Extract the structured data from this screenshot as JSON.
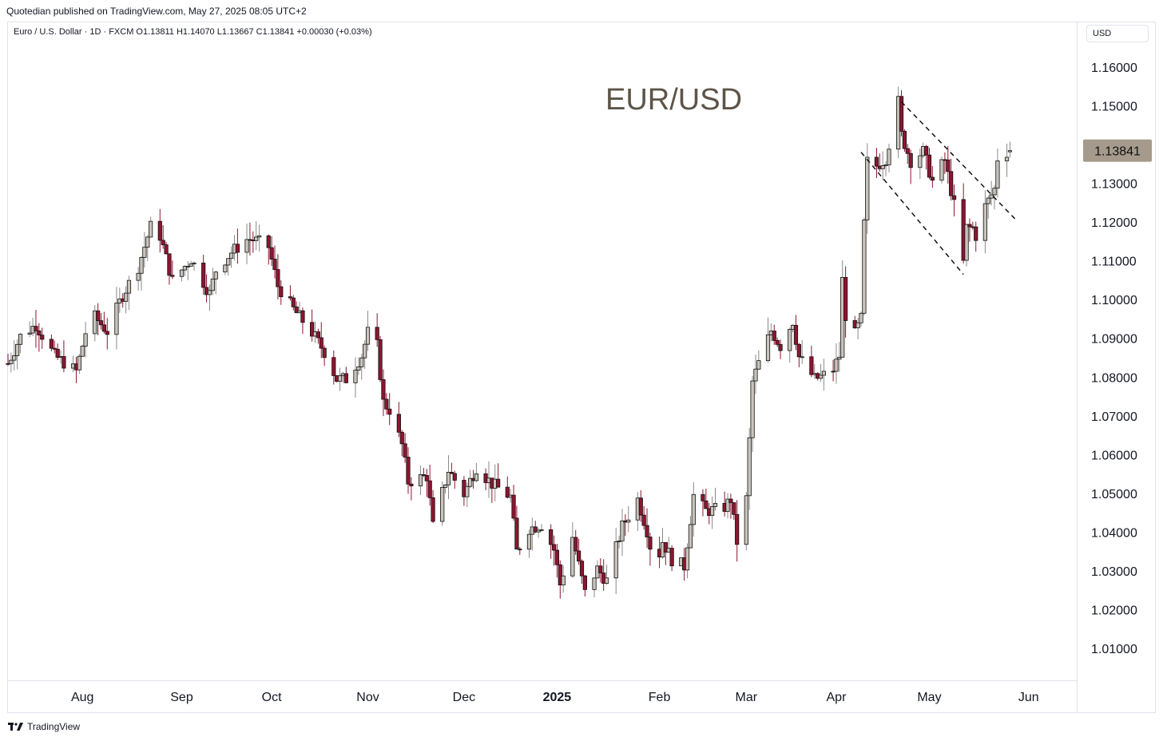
{
  "publisher_line": "Quotedian published on TradingView.com, May 27, 2025 08:05 UTC+2",
  "legend_line": "Euro / U.S. Dollar · 1D · FXCM  O1.13811  H1.14070  L1.13667  C1.13841  +0.00030 (+0.03%)",
  "currency_button": "USD",
  "footer_brand": "TradingView",
  "colors": {
    "up_body": "#c9c4bc",
    "down_body": "#8e1530",
    "wick": "#555555",
    "last_price_bg": "#a59a8c",
    "title": "#5d5448"
  },
  "chart_data": {
    "type": "candlestick",
    "title": "EUR/USD",
    "symbol": "Euro / U.S. Dollar",
    "interval": "1D",
    "source": "FXCM",
    "ohlc_last": {
      "open": 1.13811,
      "high": 1.1407,
      "low": 1.13667,
      "close": 1.13841,
      "change": "+0.00030 (+0.03%)"
    },
    "last_price_label": "1.13841",
    "y_axis": {
      "position": "right",
      "currency": "USD",
      "ylim": [
        1.002,
        1.1715
      ],
      "ticks": [
        "1.16000",
        "1.15000",
        "1.14000",
        "1.13000",
        "1.12000",
        "1.11000",
        "1.10000",
        "1.09000",
        "1.08000",
        "1.07000",
        "1.06000",
        "1.05000",
        "1.04000",
        "1.03000",
        "1.02000",
        "1.01000"
      ]
    },
    "x_axis": {
      "ticks": [
        {
          "label": "Aug",
          "date": "2024-08-01",
          "bold": false
        },
        {
          "label": "Sep",
          "date": "2024-09-02",
          "bold": false
        },
        {
          "label": "Oct",
          "date": "2024-10-01",
          "bold": false
        },
        {
          "label": "Nov",
          "date": "2024-11-01",
          "bold": false
        },
        {
          "label": "Dec",
          "date": "2024-12-02",
          "bold": false
        },
        {
          "label": "2025",
          "date": "2025-01-01",
          "bold": true
        },
        {
          "label": "Feb",
          "date": "2025-02-03",
          "bold": false
        },
        {
          "label": "Mar",
          "date": "2025-03-03",
          "bold": false
        },
        {
          "label": "Apr",
          "date": "2025-04-01",
          "bold": false
        },
        {
          "label": "May",
          "date": "2025-05-01",
          "bold": false
        },
        {
          "label": "Jun",
          "date": "2025-06-02",
          "bold": false
        }
      ]
    },
    "waypoints": [
      {
        "date": "2024-07-08",
        "close": 1.0835
      },
      {
        "date": "2024-07-12",
        "close": 1.0905
      },
      {
        "date": "2024-07-17",
        "close": 1.0935
      },
      {
        "date": "2024-07-23",
        "close": 1.0855
      },
      {
        "date": "2024-07-30",
        "close": 1.0815
      },
      {
        "date": "2024-08-02",
        "close": 1.0915
      },
      {
        "date": "2024-08-05",
        "close": 1.0955
      },
      {
        "date": "2024-08-09",
        "close": 1.0918
      },
      {
        "date": "2024-08-14",
        "close": 1.1012
      },
      {
        "date": "2024-08-19",
        "close": 1.1085
      },
      {
        "date": "2024-08-23",
        "close": 1.1188
      },
      {
        "date": "2024-08-26",
        "close": 1.1165
      },
      {
        "date": "2024-08-30",
        "close": 1.1048
      },
      {
        "date": "2024-09-05",
        "close": 1.1105
      },
      {
        "date": "2024-09-11",
        "close": 1.1015
      },
      {
        "date": "2024-09-13",
        "close": 1.1076
      },
      {
        "date": "2024-09-18",
        "close": 1.1122
      },
      {
        "date": "2024-09-23",
        "close": 1.1155
      },
      {
        "date": "2024-09-25",
        "close": 1.1155
      },
      {
        "date": "2024-09-30",
        "close": 1.1136
      },
      {
        "date": "2024-10-03",
        "close": 1.1035
      },
      {
        "date": "2024-10-08",
        "close": 1.0975
      },
      {
        "date": "2024-10-14",
        "close": 1.0915
      },
      {
        "date": "2024-10-18",
        "close": 1.0865
      },
      {
        "date": "2024-10-22",
        "close": 1.0795
      },
      {
        "date": "2024-10-25",
        "close": 1.0795
      },
      {
        "date": "2024-10-30",
        "close": 1.0855
      },
      {
        "date": "2024-11-01",
        "close": 1.0915
      },
      {
        "date": "2024-11-04",
        "close": 1.0881
      },
      {
        "date": "2024-11-06",
        "close": 1.0735
      },
      {
        "date": "2024-11-08",
        "close": 1.0716
      },
      {
        "date": "2024-11-12",
        "close": 1.0625
      },
      {
        "date": "2024-11-14",
        "close": 1.053
      },
      {
        "date": "2024-11-20",
        "close": 1.0545
      },
      {
        "date": "2024-11-22",
        "close": 1.0415
      },
      {
        "date": "2024-11-27",
        "close": 1.056
      },
      {
        "date": "2024-12-02",
        "close": 1.0498
      },
      {
        "date": "2024-12-06",
        "close": 1.0568
      },
      {
        "date": "2024-12-11",
        "close": 1.0525
      },
      {
        "date": "2024-12-17",
        "close": 1.0491
      },
      {
        "date": "2024-12-19",
        "close": 1.035
      },
      {
        "date": "2024-12-23",
        "close": 1.041
      },
      {
        "date": "2024-12-27",
        "close": 1.042
      },
      {
        "date": "2024-12-31",
        "close": 1.0355
      },
      {
        "date": "2025-01-02",
        "close": 1.0265
      },
      {
        "date": "2025-01-06",
        "close": 1.0388
      },
      {
        "date": "2025-01-10",
        "close": 1.0243
      },
      {
        "date": "2025-01-14",
        "close": 1.0305
      },
      {
        "date": "2025-01-17",
        "close": 1.0275
      },
      {
        "date": "2025-01-22",
        "close": 1.0415
      },
      {
        "date": "2025-01-27",
        "close": 1.0485
      },
      {
        "date": "2025-01-30",
        "close": 1.0405
      },
      {
        "date": "2025-01-31",
        "close": 1.0365
      },
      {
        "date": "2025-02-03",
        "close": 1.0345
      },
      {
        "date": "2025-02-04",
        "close": 1.0377
      },
      {
        "date": "2025-02-07",
        "close": 1.033
      },
      {
        "date": "2025-02-11",
        "close": 1.0312
      },
      {
        "date": "2025-02-14",
        "close": 1.0495
      },
      {
        "date": "2025-02-18",
        "close": 1.0455
      },
      {
        "date": "2025-02-21",
        "close": 1.0458
      },
      {
        "date": "2025-02-24",
        "close": 1.0465
      },
      {
        "date": "2025-02-26",
        "close": 1.0485
      },
      {
        "date": "2025-02-28",
        "close": 1.0375
      },
      {
        "date": "2025-03-03",
        "close": 1.0485
      },
      {
        "date": "2025-03-05",
        "close": 1.0788
      },
      {
        "date": "2025-03-07",
        "close": 1.0836
      },
      {
        "date": "2025-03-11",
        "close": 1.092
      },
      {
        "date": "2025-03-14",
        "close": 1.088
      },
      {
        "date": "2025-03-18",
        "close": 1.0945
      },
      {
        "date": "2025-03-20",
        "close": 1.0852
      },
      {
        "date": "2025-03-25",
        "close": 1.0795
      },
      {
        "date": "2025-03-27",
        "close": 1.08
      },
      {
        "date": "2025-03-31",
        "close": 1.082
      },
      {
        "date": "2025-04-02",
        "close": 1.0855
      },
      {
        "date": "2025-04-03",
        "close": 1.105
      },
      {
        "date": "2025-04-04",
        "close": 1.096
      },
      {
        "date": "2025-04-07",
        "close": 1.091
      },
      {
        "date": "2025-04-09",
        "close": 1.095
      },
      {
        "date": "2025-04-10",
        "close": 1.1195
      },
      {
        "date": "2025-04-11",
        "close": 1.1355
      },
      {
        "date": "2025-04-14",
        "close": 1.1345
      },
      {
        "date": "2025-04-17",
        "close": 1.1365
      },
      {
        "date": "2025-04-21",
        "close": 1.151
      },
      {
        "date": "2025-04-22",
        "close": 1.1425
      },
      {
        "date": "2025-04-25",
        "close": 1.1358
      },
      {
        "date": "2025-04-29",
        "close": 1.1382
      },
      {
        "date": "2025-05-02",
        "close": 1.1305
      },
      {
        "date": "2025-05-06",
        "close": 1.136
      },
      {
        "date": "2025-05-09",
        "close": 1.1243
      },
      {
        "date": "2025-05-12",
        "close": 1.1095
      },
      {
        "date": "2025-05-13",
        "close": 1.1185
      },
      {
        "date": "2025-05-15",
        "close": 1.1185
      },
      {
        "date": "2025-05-16",
        "close": 1.1165
      },
      {
        "date": "2025-05-19",
        "close": 1.124
      },
      {
        "date": "2025-05-22",
        "close": 1.1285
      },
      {
        "date": "2025-05-23",
        "close": 1.1365
      },
      {
        "date": "2025-05-26",
        "close": 1.1381
      },
      {
        "date": "2025-05-27",
        "close": 1.13841
      }
    ],
    "annotations": [
      {
        "type": "trend-channel-line",
        "style": "dashed",
        "from": {
          "date": "2025-04-22",
          "price": 1.151
        },
        "to": {
          "date": "2025-05-29",
          "price": 1.1205
        }
      },
      {
        "type": "trend-channel-line",
        "style": "dashed",
        "from": {
          "date": "2025-04-09",
          "price": 1.138
        },
        "to": {
          "date": "2025-05-12",
          "price": 1.1065
        }
      }
    ]
  }
}
